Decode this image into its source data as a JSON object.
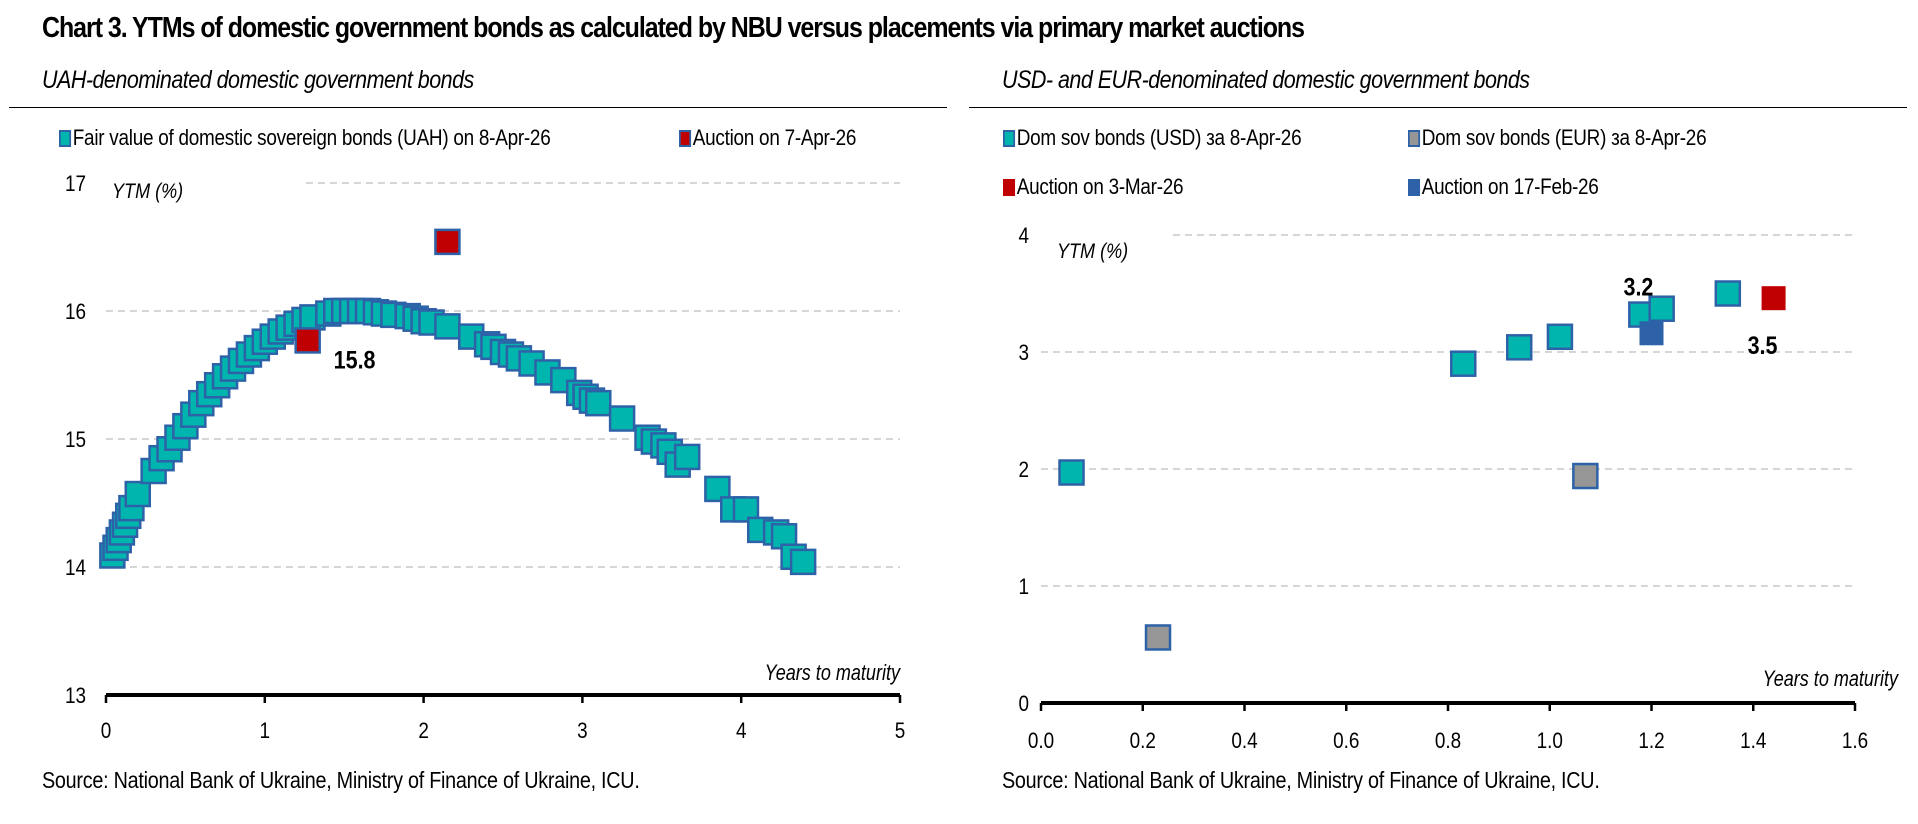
{
  "title": "Chart 3. YTMs of domestic government bonds as calculated by NBU versus placements via primary market auctions",
  "colors": {
    "teal": "#00B5AD",
    "marker_border": "#2E62A8",
    "red": "#C00000",
    "gray": "#969696",
    "dark_blue": "#2E62A8",
    "grid": "#C8C8C8"
  },
  "chart_data": [
    {
      "type": "scatter",
      "title": "UAH-denominated domestic government bonds",
      "xlabel": "Years to maturity",
      "ylabel": "YTM (%)",
      "xlim": [
        0,
        5
      ],
      "ylim": [
        13,
        17
      ],
      "xticks": [
        "0",
        "1",
        "2",
        "3",
        "4",
        "5"
      ],
      "yticks": [
        "13",
        "14",
        "15",
        "16",
        "17"
      ],
      "grid": true,
      "legend_position": "top",
      "source": "Source: National Bank of Ukraine, Ministry of Finance of Ukraine, ICU.",
      "series": [
        {
          "name": "Fair value of domestic sovereign bonds (UAH) on 8-Apr-26",
          "color": "teal",
          "x": [
            0.04,
            0.06,
            0.08,
            0.1,
            0.12,
            0.14,
            0.16,
            0.2,
            0.3,
            0.35,
            0.4,
            0.45,
            0.5,
            0.55,
            0.6,
            0.65,
            0.7,
            0.75,
            0.8,
            0.85,
            0.9,
            0.95,
            1.0,
            1.05,
            1.1,
            1.15,
            1.2,
            1.25,
            1.3,
            1.4,
            1.45,
            1.5,
            1.55,
            1.6,
            1.65,
            1.7,
            1.75,
            1.81,
            1.9,
            1.95,
            2.0,
            2.05,
            2.15,
            2.3,
            2.4,
            2.44,
            2.5,
            2.55,
            2.6,
            2.68,
            2.78,
            2.88,
            2.98,
            3.02,
            3.06,
            3.1,
            3.25,
            3.41,
            3.45,
            3.51,
            3.55,
            3.6,
            3.66,
            3.85,
            3.95,
            4.03,
            4.12,
            4.22,
            4.27,
            4.33,
            4.39
          ],
          "y": [
            14.09,
            14.15,
            14.21,
            14.27,
            14.33,
            14.4,
            14.46,
            14.57,
            14.75,
            14.85,
            14.92,
            15.01,
            15.1,
            15.19,
            15.28,
            15.35,
            15.42,
            15.49,
            15.55,
            15.61,
            15.66,
            15.71,
            15.76,
            15.8,
            15.84,
            15.87,
            15.9,
            15.93,
            15.95,
            15.98,
            16.0,
            16.0,
            16.0,
            16.0,
            16.0,
            15.99,
            15.98,
            15.97,
            15.96,
            15.94,
            15.92,
            15.91,
            15.88,
            15.8,
            15.74,
            15.72,
            15.68,
            15.66,
            15.63,
            15.59,
            15.52,
            15.46,
            15.36,
            15.33,
            15.3,
            15.28,
            15.16,
            15.01,
            14.98,
            14.95,
            14.9,
            14.8,
            14.86,
            14.61,
            14.45,
            14.45,
            14.29,
            14.27,
            14.24,
            14.08,
            14.04
          ]
        },
        {
          "name": "Auction on 7-Apr-26",
          "color": "red",
          "x": [
            1.27,
            2.15
          ],
          "y": [
            15.77,
            16.54
          ],
          "labels": [
            "15.8",
            ""
          ]
        }
      ]
    },
    {
      "type": "scatter",
      "title": "USD- and EUR-denominated domestic government bonds",
      "xlabel": "Years to maturity",
      "ylabel": "YTM (%)",
      "xlim": [
        0,
        1.6
      ],
      "ylim": [
        0,
        4
      ],
      "xticks": [
        "0.0",
        "0.2",
        "0.4",
        "0.6",
        "0.8",
        "1.0",
        "1.2",
        "1.4",
        "1.6"
      ],
      "yticks": [
        "0",
        "1",
        "2",
        "3",
        "4"
      ],
      "grid": true,
      "legend_position": "top",
      "source": "Source: National Bank of Ukraine, Ministry of Finance of Ukraine, ICU.",
      "series": [
        {
          "name": "Dom sov bonds (USD) за 8-Apr-26",
          "color": "teal",
          "x": [
            0.06,
            0.83,
            0.94,
            1.02,
            1.18,
            1.22,
            1.35
          ],
          "y": [
            1.97,
            2.9,
            3.04,
            3.13,
            3.32,
            3.37,
            3.5
          ]
        },
        {
          "name": "Dom sov bonds (EUR) за 8-Apr-26",
          "color": "gray",
          "x": [
            0.23,
            1.07
          ],
          "y": [
            0.56,
            1.94
          ]
        },
        {
          "name": "Auction on 3-Mar-26",
          "color": "red",
          "x": [
            1.44
          ],
          "y": [
            3.46
          ],
          "labels": [
            "3.5"
          ]
        },
        {
          "name": "Auction on 17-Feb-26",
          "color": "dark_blue",
          "x": [
            1.2
          ],
          "y": [
            3.16
          ],
          "labels": [
            "3.2"
          ]
        }
      ]
    }
  ]
}
